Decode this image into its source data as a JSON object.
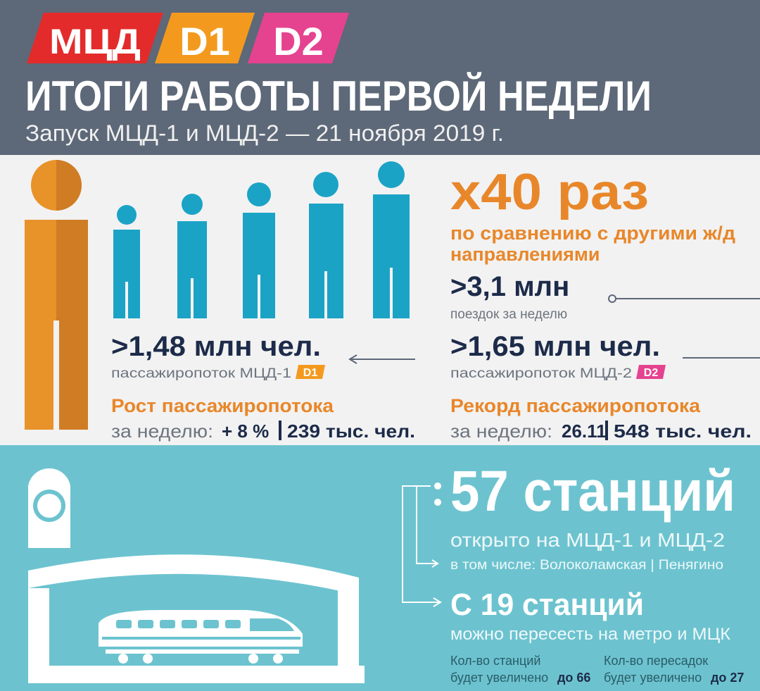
{
  "header": {
    "logos": [
      "МЦД",
      "D1",
      "D2"
    ],
    "title": "ИТОГИ РАБОТЫ ПЕРВОЙ НЕДЕЛИ",
    "subtitle": "Запуск МЦД-1 и МЦД-2 — 21 ноября 2019 г."
  },
  "ridership": {
    "multiplier": "х40 раз",
    "multiplier_note": [
      "по сравнению с другими ж/д",
      "направлениями"
    ],
    "trips": ">3,1 млн",
    "trips_note": "поездок за неделю",
    "d1": {
      "value": ">1,48 млн чел.",
      "note": "пассажиропоток МЦД-1",
      "badge": "D1"
    },
    "d2": {
      "value": ">1,65 млн чел.",
      "note": "пассажиропоток МЦД-2",
      "badge": "D2"
    },
    "growth": {
      "title": "Рост пассажиропотока",
      "label": "за неделю:",
      "percent": "+ 8 %",
      "amount": "239 тыс. чел."
    },
    "record": {
      "title": "Рекорд пассажиропотока",
      "label": "за неделю:",
      "date": "26.11",
      "amount": "548 тыс. чел."
    }
  },
  "stations": {
    "count": "57 станций",
    "count_note": "открыто на МЦД-1 и МЦД-2",
    "including": "в том числе: Волоколамская | Пенягино",
    "transfers": "С 19 станций",
    "transfers_note": "можно пересесть на метро и МЦК",
    "future": [
      {
        "line1": "Кол-во станций",
        "line2": "будет увеличено",
        "target": "до 66"
      },
      {
        "line1": "Кол-во пересадок",
        "line2": "будет увеличено",
        "target": "до 27"
      }
    ]
  }
}
